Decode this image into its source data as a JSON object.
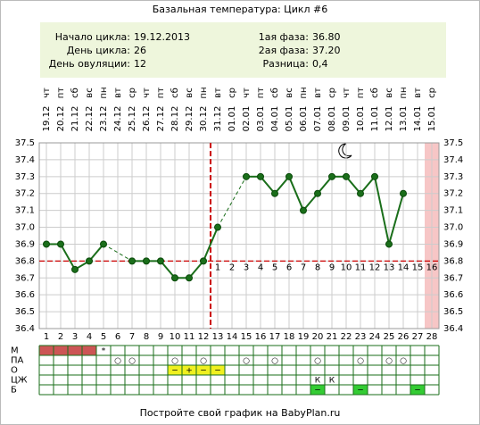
{
  "header": {
    "title": "Базальная температура: Цикл #6"
  },
  "info": {
    "left": [
      {
        "label": "Начало цикла:",
        "value": "19.12.2013"
      },
      {
        "label": "День цикла:",
        "value": "26"
      },
      {
        "label": "День овуляции:",
        "value": "12"
      }
    ],
    "right": [
      {
        "label": "1ая фаза:",
        "value": "36.80"
      },
      {
        "label": "2ая фаза:",
        "value": "37.20"
      },
      {
        "label": "Разница:",
        "value": "0,4"
      }
    ]
  },
  "chart_data": {
    "type": "line",
    "categories": [
      1,
      2,
      3,
      4,
      5,
      6,
      7,
      8,
      9,
      10,
      11,
      12,
      13,
      14,
      15,
      16,
      17,
      18,
      19,
      20,
      21,
      22,
      23,
      24,
      25,
      26,
      27,
      28
    ],
    "dates": [
      "19.12",
      "20.12",
      "21.12",
      "22.12",
      "23.12",
      "24.12",
      "25.12",
      "26.12",
      "27.12",
      "28.12",
      "29.12",
      "30.12",
      "31.12",
      "01.01",
      "02.01",
      "03.01",
      "04.01",
      "05.01",
      "06.01",
      "07.01",
      "08.01",
      "09.01",
      "10.01",
      "11.01",
      "12.01",
      "13.01",
      "14.01",
      "15.01"
    ],
    "weekdays": [
      "чт",
      "пт",
      "сб",
      "вс",
      "пн",
      "вт",
      "ср",
      "чт",
      "пт",
      "сб",
      "вс",
      "пн",
      "вт",
      "ср",
      "чт",
      "пт",
      "сб",
      "вс",
      "пн",
      "вт",
      "ср",
      "чт",
      "пт",
      "сб",
      "вс",
      "пн",
      "вт",
      "ср"
    ],
    "series": [
      {
        "name": "Температура",
        "color": "#1a6e1a",
        "values": [
          36.9,
          36.9,
          36.75,
          36.8,
          36.9,
          null,
          36.8,
          36.8,
          36.8,
          36.7,
          36.7,
          36.8,
          37.0,
          null,
          37.3,
          37.3,
          37.2,
          37.3,
          37.1,
          37.2,
          37.3,
          37.3,
          37.2,
          37.3,
          36.9,
          37.2,
          null,
          null
        ]
      }
    ],
    "ylim": [
      36.4,
      37.5
    ],
    "yticks": [
      37.5,
      37.4,
      37.3,
      37.2,
      37.1,
      {
        "value": 37,
        "label": "37.0"
      },
      36.9,
      36.8,
      36.7,
      36.6,
      36.5,
      36.4
    ],
    "cover_line": 36.8,
    "ovulation_day": 12,
    "phase_days": [
      1,
      2,
      3,
      4,
      5,
      6,
      7,
      8,
      9,
      10,
      11,
      12,
      13,
      14,
      15,
      16
    ],
    "grid": true
  },
  "rows": [
    {
      "label": "М",
      "cells": {
        "5": "*"
      },
      "highlight": [
        1,
        2,
        3,
        4
      ],
      "highlight_color": "#cc5555"
    },
    {
      "label": "ПА",
      "cells": {
        "6": "○",
        "7": "○",
        "10": "○",
        "12": "○",
        "15": "○",
        "17": "○",
        "20": "○",
        "23": "○",
        "25": "○",
        "26": "○"
      }
    },
    {
      "label": "О",
      "cells": {
        "10": "−",
        "11": "+",
        "12": "−",
        "13": "−"
      },
      "highlight": [
        10,
        11,
        12,
        13
      ],
      "highlight_color": "#f0f020"
    },
    {
      "label": "ЦЖ",
      "cells": {
        "20": "К",
        "21": "К"
      }
    },
    {
      "label": "Б",
      "cells": {
        "20": "−",
        "23": "−",
        "27": "−"
      },
      "highlight": [
        20,
        23,
        27
      ],
      "highlight_color": "#33cc33"
    }
  ],
  "footer": "Постройте свой график на BabyPlan.ru"
}
